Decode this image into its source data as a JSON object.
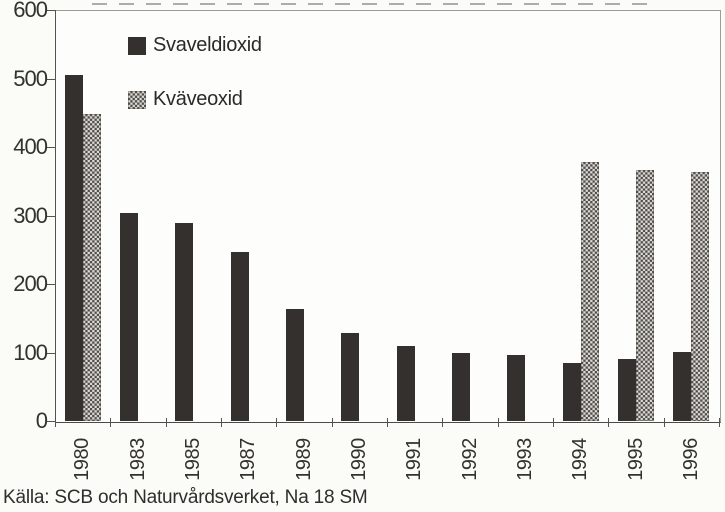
{
  "source_line": "Källa: SCB och Naturvårdsverket, Na 18 SM",
  "colors": {
    "background": "#fbfbf8",
    "bar_solid": "#33302d",
    "pattern_dark": "#514e4b",
    "pattern_light": "#dbd9d4",
    "axis_line": "#55554f",
    "frame_line": "#9c9c98",
    "text": "#33322f"
  },
  "chart_data": {
    "type": "bar",
    "title": "",
    "xlabel": "",
    "ylabel": "",
    "categories": [
      "1980",
      "1983",
      "1985",
      "1987",
      "1989",
      "1990",
      "1991",
      "1992",
      "1993",
      "1994",
      "1995",
      "1996"
    ],
    "series": [
      {
        "name": "Svaveldioxid",
        "style": "solid",
        "values": [
          505,
          303,
          289,
          246,
          163,
          128,
          110,
          100,
          96,
          85,
          90,
          101
        ]
      },
      {
        "name": "Kväveoxid",
        "style": "checker-pattern",
        "values": [
          448,
          null,
          null,
          null,
          null,
          null,
          null,
          null,
          null,
          378,
          367,
          363
        ]
      }
    ],
    "ylim": [
      0,
      600
    ],
    "yticks": [
      0,
      100,
      200,
      300,
      400,
      500,
      600
    ],
    "grid": false,
    "legend_position": "top-left-inside",
    "x_tick_style": "category-boundaries",
    "x_label_rotation_deg": -90
  }
}
